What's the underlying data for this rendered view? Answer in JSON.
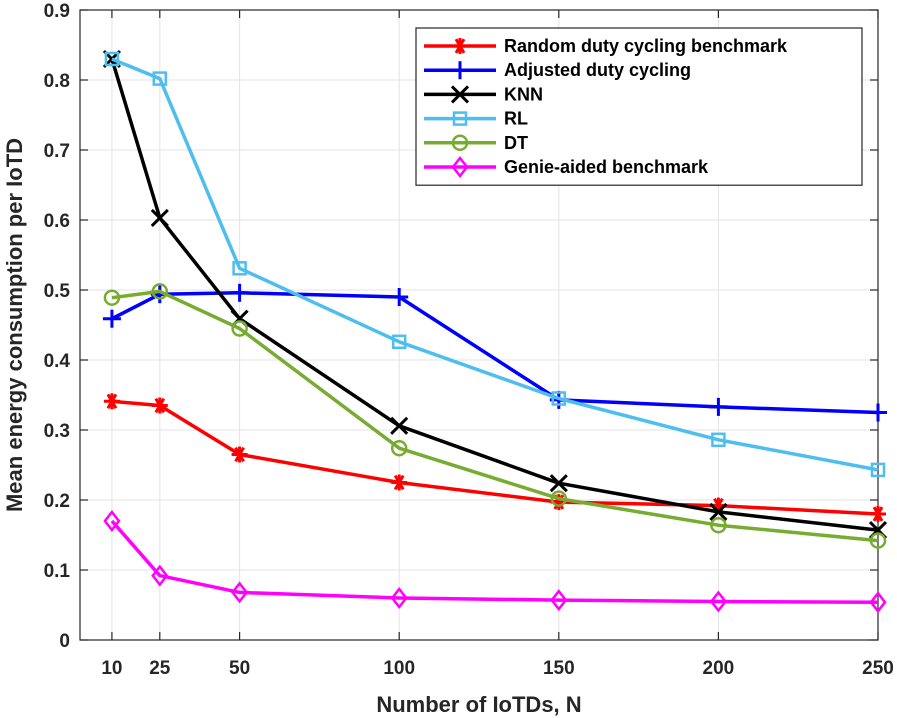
{
  "chart_data": {
    "type": "line",
    "title": "",
    "xlabel": "Number of IoTDs, N",
    "ylabel": "Mean energy consumption per IoTD",
    "x": [
      10,
      25,
      50,
      100,
      150,
      200,
      250
    ],
    "xlim": [
      0,
      250
    ],
    "ylim": [
      0,
      0.9
    ],
    "xticks": [
      10,
      25,
      50,
      100,
      150,
      200,
      250
    ],
    "yticks": [
      0,
      0.1,
      0.2,
      0.3,
      0.4,
      0.5,
      0.6,
      0.7,
      0.8,
      0.9
    ],
    "xtick_labels": [
      "10",
      "25",
      "50",
      "100",
      "150",
      "200",
      "250"
    ],
    "ytick_labels": [
      "0",
      "0.1",
      "0.2",
      "0.3",
      "0.4",
      "0.5",
      "0.6",
      "0.7",
      "0.8",
      "0.9"
    ],
    "grid": true,
    "legend_position": "top-right",
    "series": [
      {
        "name": "Random duty cycling benchmark",
        "color": "#ff0000",
        "marker": "asterisk",
        "values": [
          0.341,
          0.335,
          0.265,
          0.225,
          0.197,
          0.192,
          0.18
        ]
      },
      {
        "name": "Adjusted duty cycling",
        "color": "#0000ff",
        "marker": "plus",
        "values": [
          0.459,
          0.494,
          0.496,
          0.49,
          0.343,
          0.333,
          0.325
        ]
      },
      {
        "name": "KNN",
        "color": "#000000",
        "marker": "x",
        "values": [
          0.83,
          0.603,
          0.459,
          0.306,
          0.224,
          0.183,
          0.157
        ]
      },
      {
        "name": "RL",
        "color": "#4dbeee",
        "marker": "square",
        "values": [
          0.83,
          0.802,
          0.531,
          0.426,
          0.345,
          0.286,
          0.243
        ]
      },
      {
        "name": "DT",
        "color": "#77ac30",
        "marker": "circle",
        "values": [
          0.489,
          0.498,
          0.445,
          0.274,
          0.202,
          0.164,
          0.142
        ]
      },
      {
        "name": "Genie-aided benchmark",
        "color": "#ff00ff",
        "marker": "diamond",
        "values": [
          0.17,
          0.092,
          0.068,
          0.06,
          0.057,
          0.055,
          0.054
        ]
      }
    ]
  }
}
